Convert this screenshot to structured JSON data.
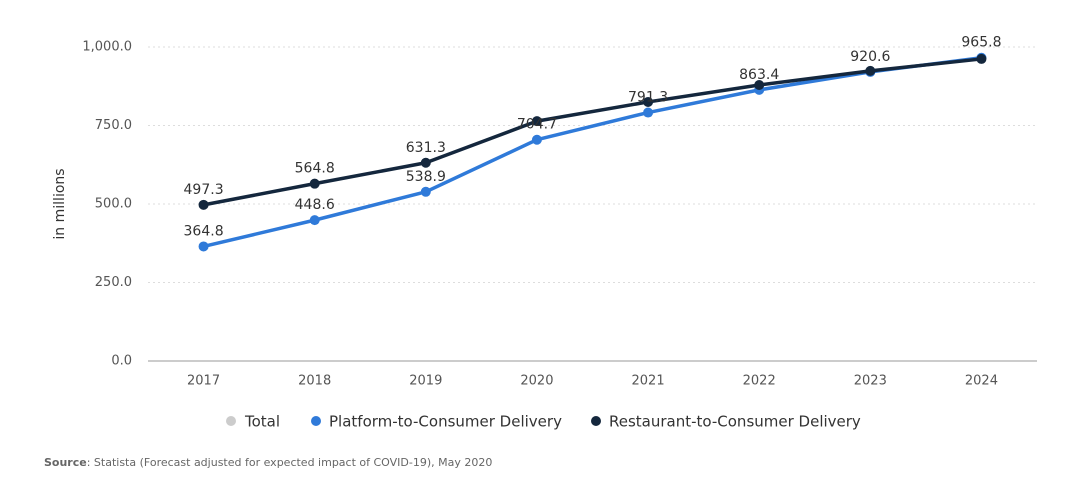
{
  "chart_data": {
    "type": "line",
    "y_label": "in millions",
    "categories": [
      "2017",
      "2018",
      "2019",
      "2020",
      "2021",
      "2022",
      "2023",
      "2024"
    ],
    "series": [
      {
        "name": "Total",
        "color": "#cccccc",
        "visible": false,
        "values": [
          null,
          null,
          null,
          null,
          null,
          null,
          null,
          null
        ]
      },
      {
        "name": "Platform-to-Consumer Delivery",
        "color": "#2f7ad9",
        "visible": true,
        "values": [
          364.8,
          448.6,
          538.9,
          704.7,
          791.3,
          863.4,
          920.6,
          965.8
        ],
        "value_labels": [
          "364.8",
          "448.6",
          "538.9",
          "704.7",
          "791.3",
          "863.4",
          "920.6",
          "965.8"
        ]
      },
      {
        "name": "Restaurant-to-Consumer Delivery",
        "color": "#14273d",
        "visible": true,
        "values": [
          497.3,
          564.8,
          631.3,
          764,
          825,
          879,
          924,
          962
        ],
        "value_labels": [
          "497.3",
          "564.8",
          "631.3",
          null,
          null,
          null,
          null,
          null
        ]
      }
    ],
    "ylim": [
      0,
      1000
    ],
    "yticks": [
      {
        "value": 0,
        "label": "0.0"
      },
      {
        "value": 250,
        "label": "250.0"
      },
      {
        "value": 500,
        "label": "500.0"
      },
      {
        "value": 750,
        "label": "750.0"
      },
      {
        "value": 1000,
        "label": "1,000.0"
      }
    ],
    "grid": true,
    "source_label": "Source",
    "source_text": ": Statista (Forecast adjusted for expected impact of COVID-19), May 2020"
  }
}
